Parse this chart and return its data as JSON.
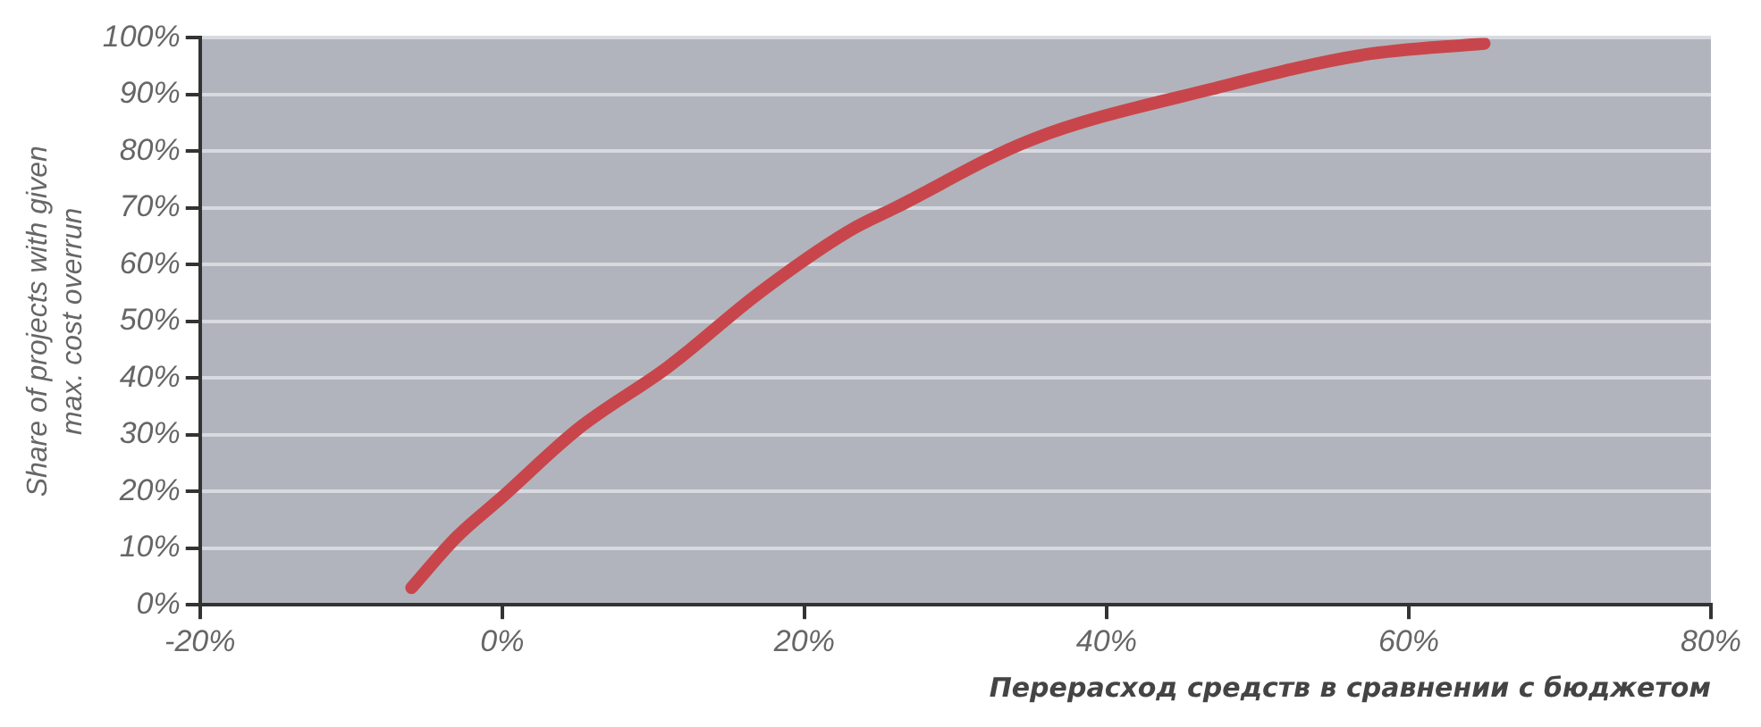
{
  "chart_data": {
    "type": "line",
    "xlabel": "Перерасход средств в сравнении с бюджетом",
    "ylabel": "Share of projects with given\nmax. cost overrun",
    "x": [
      -6,
      -3,
      0,
      5,
      11,
      17,
      23,
      26,
      35,
      47,
      57,
      65
    ],
    "series": [
      {
        "color": "#c8464b",
        "values": [
          3,
          12,
          19,
          31,
          42,
          55,
          66,
          70,
          82,
          91,
          97,
          99
        ]
      }
    ],
    "xlim": [
      -20,
      80
    ],
    "xticks": [
      {
        "value": -20,
        "label": "-20%"
      },
      {
        "value": 0,
        "label": "0%"
      },
      {
        "value": 20,
        "label": "20%"
      },
      {
        "value": 40,
        "label": "40%"
      },
      {
        "value": 60,
        "label": "60%"
      },
      {
        "value": 80,
        "label": "80%"
      }
    ],
    "ylim": [
      0,
      100
    ],
    "yticks": [
      {
        "value": 0,
        "label": "0%"
      },
      {
        "value": 10,
        "label": "10%"
      },
      {
        "value": 20,
        "label": "20%"
      },
      {
        "value": 30,
        "label": "30%"
      },
      {
        "value": 40,
        "label": "40%"
      },
      {
        "value": 50,
        "label": "50%"
      },
      {
        "value": 60,
        "label": "60%"
      },
      {
        "value": 70,
        "label": "70%"
      },
      {
        "value": 80,
        "label": "80%"
      },
      {
        "value": 90,
        "label": "90%"
      },
      {
        "value": 100,
        "label": "100%"
      }
    ],
    "grid": "y",
    "legend": false,
    "marker": "none",
    "line_style": "solid"
  }
}
